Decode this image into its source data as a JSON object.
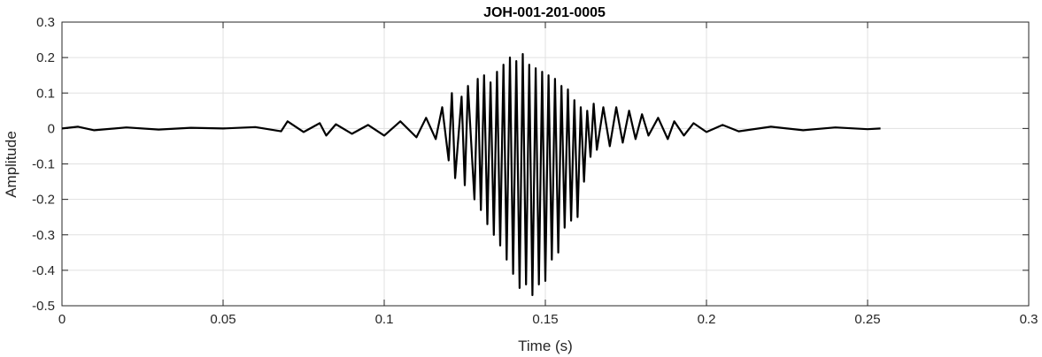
{
  "chart_data": {
    "type": "line",
    "title": "JOH-001-201-0005",
    "xlabel": "Time (s)",
    "ylabel": "Amplitude",
    "xlim": [
      0,
      0.3
    ],
    "ylim": [
      -0.5,
      0.3
    ],
    "grid": true,
    "x_ticks": [
      0,
      0.05,
      0.1,
      0.15,
      0.2,
      0.25,
      0.3
    ],
    "x_tick_labels": [
      "0",
      "0.05",
      "0.1",
      "0.15",
      "0.2",
      "0.25",
      "0.3"
    ],
    "y_ticks": [
      -0.5,
      -0.4,
      -0.3,
      -0.2,
      -0.1,
      0,
      0.1,
      0.2,
      0.3
    ],
    "y_tick_labels": [
      "-0.5",
      "-0.4",
      "-0.3",
      "-0.2",
      "-0.1",
      "0",
      "0.1",
      "0.2",
      "0.3"
    ],
    "line_color": "#000000",
    "series": [
      {
        "x": [
          0,
          0.005,
          0.01,
          0.02,
          0.03,
          0.04,
          0.05,
          0.06,
          0.068,
          0.07,
          0.075,
          0.08,
          0.082,
          0.085,
          0.09,
          0.095,
          0.1,
          0.105,
          0.11,
          0.113,
          0.116,
          0.118,
          0.12,
          0.121,
          0.122,
          0.124,
          0.125,
          0.126,
          0.128,
          0.129,
          0.13,
          0.131,
          0.132,
          0.133,
          0.134,
          0.135,
          0.136,
          0.137,
          0.138,
          0.139,
          0.14,
          0.141,
          0.142,
          0.143,
          0.144,
          0.145,
          0.146,
          0.147,
          0.148,
          0.149,
          0.15,
          0.151,
          0.152,
          0.153,
          0.154,
          0.155,
          0.156,
          0.157,
          0.158,
          0.159,
          0.16,
          0.161,
          0.162,
          0.163,
          0.164,
          0.165,
          0.166,
          0.168,
          0.17,
          0.172,
          0.174,
          0.176,
          0.178,
          0.18,
          0.182,
          0.185,
          0.188,
          0.19,
          0.193,
          0.196,
          0.2,
          0.205,
          0.21,
          0.22,
          0.23,
          0.24,
          0.25,
          0.254
        ],
        "y": [
          0,
          0.005,
          -0.005,
          0.003,
          -0.003,
          0.002,
          0,
          0.004,
          -0.008,
          0.02,
          -0.01,
          0.015,
          -0.02,
          0.012,
          -0.015,
          0.01,
          -0.02,
          0.02,
          -0.025,
          0.03,
          -0.03,
          0.06,
          -0.09,
          0.1,
          -0.14,
          0.09,
          -0.16,
          0.12,
          -0.2,
          0.14,
          -0.23,
          0.15,
          -0.27,
          0.13,
          -0.3,
          0.16,
          -0.33,
          0.18,
          -0.37,
          0.2,
          -0.41,
          0.19,
          -0.45,
          0.21,
          -0.44,
          0.18,
          -0.47,
          0.17,
          -0.44,
          0.16,
          -0.43,
          0.15,
          -0.37,
          0.14,
          -0.35,
          0.12,
          -0.28,
          0.11,
          -0.26,
          0.08,
          -0.25,
          0.06,
          -0.15,
          0.05,
          -0.08,
          0.07,
          -0.06,
          0.06,
          -0.05,
          0.06,
          -0.04,
          0.05,
          -0.03,
          0.04,
          -0.02,
          0.03,
          -0.03,
          0.02,
          -0.02,
          0.015,
          -0.01,
          0.01,
          -0.008,
          0.005,
          -0.005,
          0.003,
          -0.002,
          0
        ]
      }
    ]
  }
}
